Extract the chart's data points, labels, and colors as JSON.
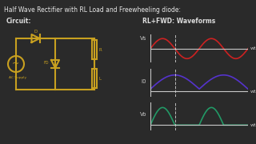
{
  "title": "Half Wave Rectifier with RL Load and Freewheeling diode:",
  "title_color": "#e8e8e8",
  "bg_color": "#2a2a2a",
  "circuit_label": "Circuit:",
  "waveform_label": "RL+FWD: Waveforms",
  "circuit_color": "#c8a020",
  "vs_label": "Vs",
  "i0_label": "I0",
  "vo_label": "Vo",
  "wt_label": "wt",
  "axis_color": "#c8c8c8",
  "vs_color": "#cc2222",
  "i0_color": "#5533cc",
  "vo_color": "#229966",
  "dashed_color": "#cccccc",
  "text_color": "#dddddd",
  "label_color": "#cccccc"
}
